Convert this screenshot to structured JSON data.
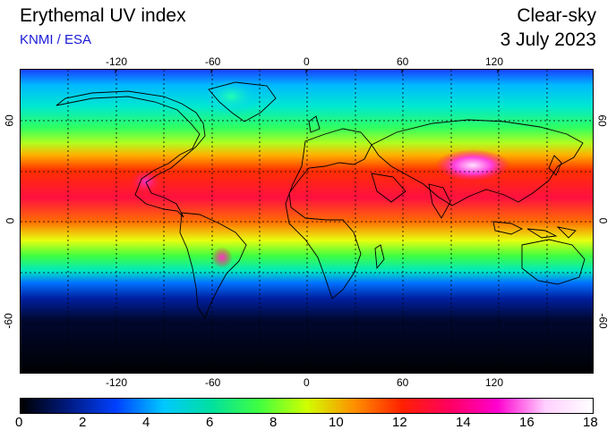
{
  "header": {
    "title": "Erythemal UV index",
    "subtitle": "KNMI / ESA",
    "mode": "Clear-sky",
    "date": "3 July 2023"
  },
  "map": {
    "lon_ticks": [
      "-120",
      "-60",
      "0",
      "60",
      "120"
    ],
    "lat_ticks": [
      "60",
      "0",
      "-60"
    ],
    "lon_range": [
      -180,
      180
    ],
    "lat_range": [
      -90,
      90
    ],
    "grid": "dashed, 30° spacing"
  },
  "colorbar": {
    "labels": [
      "0",
      "2",
      "4",
      "6",
      "8",
      "10",
      "12",
      "14",
      "16",
      "18"
    ],
    "range": [
      0,
      18
    ],
    "colors": [
      "#000000",
      "#001a80",
      "#0040ff",
      "#00c8ff",
      "#00e0a0",
      "#40ff40",
      "#d0ff00",
      "#ff9000",
      "#ff2000",
      "#ff0060",
      "#ff00d0",
      "#ffd0ff",
      "#ffffff"
    ]
  }
}
